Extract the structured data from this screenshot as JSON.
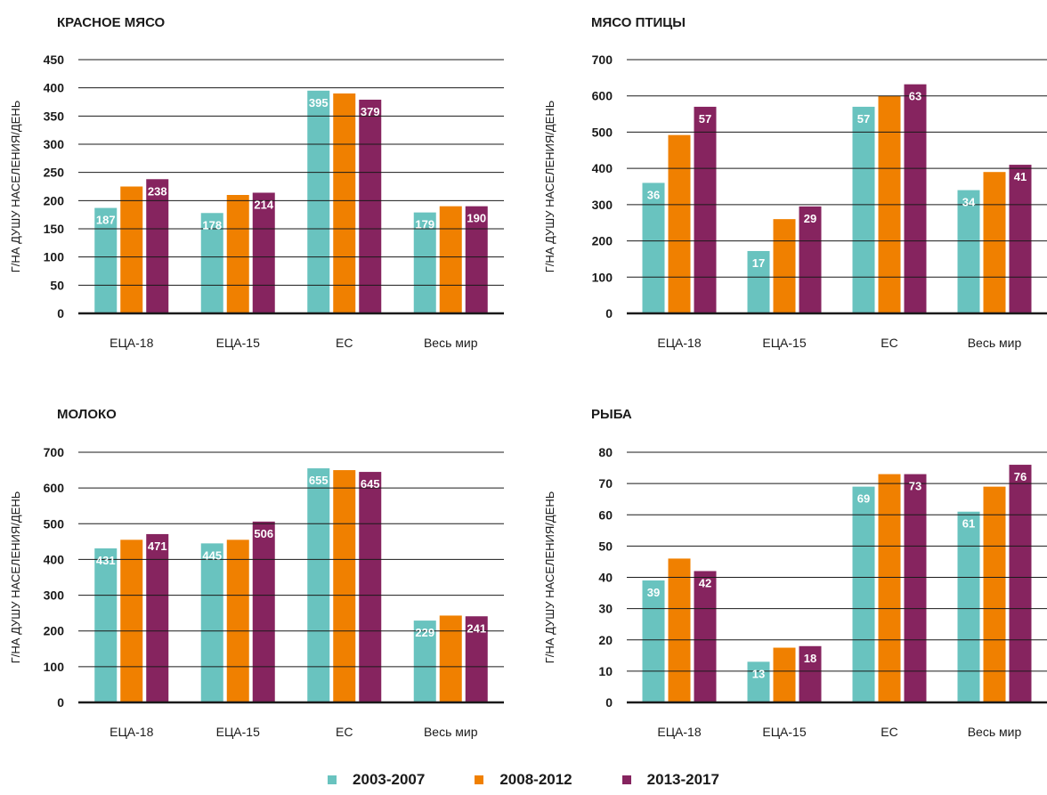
{
  "colors": {
    "series": [
      "#69c3bf",
      "#f08000",
      "#86245f"
    ],
    "grid": "#1a1a1a",
    "text": "#1a1a1a",
    "label_text": "#ffffff"
  },
  "legend": {
    "items": [
      "2003-2007",
      "2008-2012",
      "2013-2017"
    ]
  },
  "chart_data": [
    {
      "type": "bar",
      "title": "КРАСНОЕ МЯСО",
      "ylabel": "Г/НА ДУШУ НАСЕЛЕНИЯ/ДЕНЬ",
      "categories": [
        "ЕЦА-18",
        "ЕЦА-15",
        "ЕС",
        "Весь мир"
      ],
      "ylim": [
        0,
        450
      ],
      "yticks": [
        0,
        50,
        100,
        150,
        200,
        250,
        300,
        350,
        400,
        450
      ],
      "series": [
        {
          "name": "2003-2007",
          "values": [
            187,
            178,
            395,
            179
          ]
        },
        {
          "name": "2008-2012",
          "values": [
            225,
            210,
            390,
            190
          ]
        },
        {
          "name": "2013-2017",
          "values": [
            238,
            214,
            379,
            190
          ]
        }
      ],
      "labels": [
        {
          "series": 0,
          "category": 0,
          "text": "187"
        },
        {
          "series": 2,
          "category": 0,
          "text": "238"
        },
        {
          "series": 0,
          "category": 1,
          "text": "178"
        },
        {
          "series": 2,
          "category": 1,
          "text": "214"
        },
        {
          "series": 0,
          "category": 2,
          "text": "395"
        },
        {
          "series": 2,
          "category": 2,
          "text": "379"
        },
        {
          "series": 0,
          "category": 3,
          "text": "179"
        },
        {
          "series": 2,
          "category": 3,
          "text": "190"
        }
      ]
    },
    {
      "type": "bar",
      "title": "МЯСО ПТИЦЫ",
      "ylabel": "Г/НА ДУШУ НАСЕЛЕНИЯ/ДЕНЬ",
      "categories": [
        "ЕЦА-18",
        "ЕЦА-15",
        "ЕС",
        "Весь мир"
      ],
      "ylim": [
        0,
        700
      ],
      "yticks": [
        0,
        100,
        200,
        300,
        400,
        500,
        600,
        700
      ],
      "series": [
        {
          "name": "2003-2007",
          "values": [
            360,
            172,
            570,
            340
          ]
        },
        {
          "name": "2008-2012",
          "values": [
            492,
            260,
            600,
            390
          ]
        },
        {
          "name": "2013-2017",
          "values": [
            570,
            295,
            632,
            410
          ]
        }
      ],
      "labels": [
        {
          "series": 0,
          "category": 0,
          "text": "36"
        },
        {
          "series": 2,
          "category": 0,
          "text": "57"
        },
        {
          "series": 0,
          "category": 1,
          "text": "17"
        },
        {
          "series": 2,
          "category": 1,
          "text": "29"
        },
        {
          "series": 0,
          "category": 2,
          "text": "57"
        },
        {
          "series": 2,
          "category": 2,
          "text": "63"
        },
        {
          "series": 0,
          "category": 3,
          "text": "34"
        },
        {
          "series": 2,
          "category": 3,
          "text": "41"
        }
      ]
    },
    {
      "type": "bar",
      "title": "МОЛОКО",
      "ylabel": "Г/НА ДУШУ НАСЕЛЕНИЯ/ДЕНЬ",
      "categories": [
        "ЕЦА-18",
        "ЕЦА-15",
        "ЕС",
        "Весь мир"
      ],
      "ylim": [
        0,
        700
      ],
      "yticks": [
        0,
        100,
        200,
        300,
        400,
        500,
        600,
        700
      ],
      "series": [
        {
          "name": "2003-2007",
          "values": [
            431,
            445,
            655,
            229
          ]
        },
        {
          "name": "2008-2012",
          "values": [
            455,
            455,
            650,
            243
          ]
        },
        {
          "name": "2013-2017",
          "values": [
            471,
            506,
            645,
            241
          ]
        }
      ],
      "labels": [
        {
          "series": 0,
          "category": 0,
          "text": "431"
        },
        {
          "series": 2,
          "category": 0,
          "text": "471"
        },
        {
          "series": 0,
          "category": 1,
          "text": "445"
        },
        {
          "series": 2,
          "category": 1,
          "text": "506"
        },
        {
          "series": 0,
          "category": 2,
          "text": "655"
        },
        {
          "series": 2,
          "category": 2,
          "text": "645"
        },
        {
          "series": 0,
          "category": 3,
          "text": "229"
        },
        {
          "series": 2,
          "category": 3,
          "text": "241"
        }
      ]
    },
    {
      "type": "bar",
      "title": "РЫБА",
      "ylabel": "Г/НА ДУШУ НАСЕЛЕНИЯ/ДЕНЬ",
      "categories": [
        "ЕЦА-18",
        "ЕЦА-15",
        "ЕС",
        "Весь мир"
      ],
      "ylim": [
        0,
        80
      ],
      "yticks": [
        0,
        10,
        20,
        30,
        40,
        50,
        60,
        70,
        80
      ],
      "series": [
        {
          "name": "2003-2007",
          "values": [
            39,
            13,
            69,
            61
          ]
        },
        {
          "name": "2008-2012",
          "values": [
            46,
            17.5,
            73,
            69
          ]
        },
        {
          "name": "2013-2017",
          "values": [
            42,
            18,
            73,
            76
          ]
        }
      ],
      "labels": [
        {
          "series": 0,
          "category": 0,
          "text": "39"
        },
        {
          "series": 2,
          "category": 0,
          "text": "42"
        },
        {
          "series": 0,
          "category": 1,
          "text": "13"
        },
        {
          "series": 2,
          "category": 1,
          "text": "18"
        },
        {
          "series": 0,
          "category": 2,
          "text": "69"
        },
        {
          "series": 2,
          "category": 2,
          "text": "73"
        },
        {
          "series": 0,
          "category": 3,
          "text": "61"
        },
        {
          "series": 2,
          "category": 3,
          "text": "76"
        }
      ]
    }
  ]
}
